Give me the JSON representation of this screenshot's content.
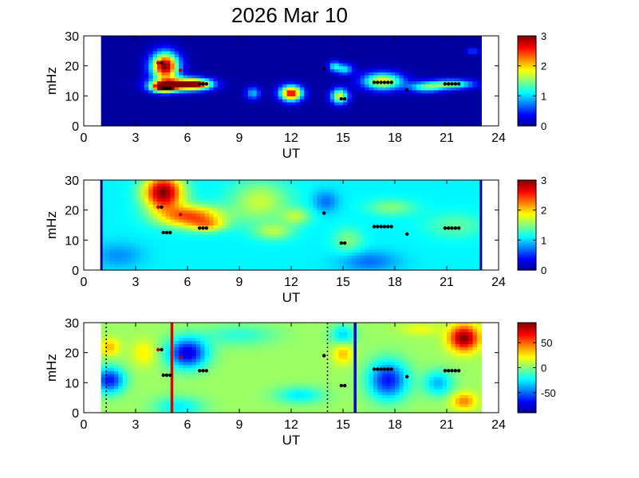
{
  "figure": {
    "title": "2026 Mar 10"
  },
  "colors": {
    "jet": [
      "#00008f",
      "#0000ff",
      "#0080ff",
      "#00ffff",
      "#80ff80",
      "#ffff00",
      "#ff8000",
      "#ff0000",
      "#800000"
    ],
    "marker": "#000000",
    "marker_red": "#c00000",
    "line_red": "#e00000",
    "line_blue": "#0000cc"
  },
  "chart_data": [
    {
      "type": "heatmap",
      "xlabel": "UT",
      "ylabel": "mHz",
      "xlim": [
        0,
        24
      ],
      "ylim": [
        0,
        30
      ],
      "xticks": [
        "0",
        "3",
        "6",
        "9",
        "12",
        "15",
        "18",
        "21",
        "24"
      ],
      "yticks": [
        "0",
        "10",
        "20",
        "30"
      ],
      "data_window": [
        1,
        23
      ],
      "colorbar": {
        "range": [
          0,
          3
        ],
        "ticks": [
          "0",
          "1",
          "2",
          "3"
        ]
      },
      "background": 0.05,
      "blobs": [
        {
          "x": 4.7,
          "y": 20,
          "sx": 0.55,
          "sy": 3.2,
          "v": 3.0
        },
        {
          "x": 5.6,
          "y": 14,
          "sx": 1.0,
          "sy": 1.5,
          "v": 2.4
        },
        {
          "x": 6.6,
          "y": 14,
          "sx": 0.6,
          "sy": 1.2,
          "v": 1.6
        },
        {
          "x": 4.6,
          "y": 13,
          "sx": 0.5,
          "sy": 1.2,
          "v": 2.6
        },
        {
          "x": 9.8,
          "y": 11,
          "sx": 0.3,
          "sy": 1.5,
          "v": 0.9
        },
        {
          "x": 12.0,
          "y": 11,
          "sx": 0.45,
          "sy": 1.8,
          "v": 2.7
        },
        {
          "x": 14.5,
          "y": 20,
          "sx": 0.25,
          "sy": 1.2,
          "v": 1.0
        },
        {
          "x": 15.1,
          "y": 19,
          "sx": 0.35,
          "sy": 1.3,
          "v": 1.0
        },
        {
          "x": 14.8,
          "y": 10,
          "sx": 0.35,
          "sy": 1.8,
          "v": 1.8
        },
        {
          "x": 17.3,
          "y": 15,
          "sx": 0.8,
          "sy": 2.0,
          "v": 1.9
        },
        {
          "x": 19.8,
          "y": 13,
          "sx": 0.7,
          "sy": 1.2,
          "v": 1.2
        },
        {
          "x": 21.3,
          "y": 14,
          "sx": 0.9,
          "sy": 1.1,
          "v": 1.4
        },
        {
          "x": 22.5,
          "y": 25,
          "sx": 0.25,
          "sy": 0.7,
          "v": 0.6
        }
      ],
      "lines": []
    },
    {
      "type": "heatmap",
      "xlabel": "UT",
      "ylabel": "mHz",
      "xlim": [
        0,
        24
      ],
      "ylim": [
        0,
        30
      ],
      "xticks": [
        "0",
        "3",
        "6",
        "9",
        "12",
        "15",
        "18",
        "21",
        "24"
      ],
      "yticks": [
        "0",
        "10",
        "20",
        "30"
      ],
      "data_window": [
        1,
        23
      ],
      "colorbar": {
        "range": [
          0,
          3
        ],
        "ticks": [
          "0",
          "1",
          "2",
          "3"
        ]
      },
      "background": 1.1,
      "blobs": [
        {
          "x": 4.6,
          "y": 26,
          "sx": 0.8,
          "sy": 4.0,
          "v": 1.9
        },
        {
          "x": 6.2,
          "y": 18,
          "sx": 1.3,
          "sy": 2.6,
          "v": 1.3
        },
        {
          "x": 7.2,
          "y": 15,
          "sx": 0.7,
          "sy": 1.5,
          "v": 0.6
        },
        {
          "x": 10.2,
          "y": 23,
          "sx": 1.2,
          "sy": 5.0,
          "v": 0.6
        },
        {
          "x": 11.0,
          "y": 13,
          "sx": 0.8,
          "sy": 2.0,
          "v": 0.5
        },
        {
          "x": 12.3,
          "y": 18,
          "sx": 0.6,
          "sy": 2.0,
          "v": 0.5
        },
        {
          "x": 14.0,
          "y": 23,
          "sx": 0.5,
          "sy": 2.5,
          "v": -0.4
        },
        {
          "x": 15.3,
          "y": 10,
          "sx": 0.6,
          "sy": 3.0,
          "v": 0.4
        },
        {
          "x": 16.5,
          "y": 3,
          "sx": 1.2,
          "sy": 2.5,
          "v": -0.4
        },
        {
          "x": 17.8,
          "y": 21,
          "sx": 1.0,
          "sy": 2.0,
          "v": 0.4
        },
        {
          "x": 21.5,
          "y": 15,
          "sx": 1.2,
          "sy": 3.0,
          "v": 0.3
        },
        {
          "x": 2.0,
          "y": 5,
          "sx": 1.0,
          "sy": 3.0,
          "v": -0.3
        }
      ],
      "lines": []
    },
    {
      "type": "heatmap",
      "xlabel": "UT",
      "ylabel": "mHz",
      "xlim": [
        0,
        24
      ],
      "ylim": [
        0,
        30
      ],
      "xticks": [
        "0",
        "3",
        "6",
        "9",
        "12",
        "15",
        "18",
        "21",
        "24"
      ],
      "yticks": [
        "0",
        "10",
        "20",
        "30"
      ],
      "data_window": [
        1,
        23
      ],
      "colorbar": {
        "range": [
          -90,
          90
        ],
        "ticks": [
          "50",
          "0",
          "-50"
        ],
        "tick_values": [
          50,
          0,
          -50
        ]
      },
      "background": 5,
      "blobs": [
        {
          "x": 1.5,
          "y": 11,
          "sx": 0.6,
          "sy": 3.0,
          "v": -70
        },
        {
          "x": 1.5,
          "y": 22,
          "sx": 0.4,
          "sy": 2.0,
          "v": 30
        },
        {
          "x": 3.5,
          "y": 20,
          "sx": 0.5,
          "sy": 3.0,
          "v": 20
        },
        {
          "x": 6.0,
          "y": 20,
          "sx": 0.8,
          "sy": 3.5,
          "v": -80
        },
        {
          "x": 5.5,
          "y": 2,
          "sx": 1.0,
          "sy": 2.5,
          "v": -30
        },
        {
          "x": 9.0,
          "y": 26,
          "sx": 1.5,
          "sy": 2.5,
          "v": -20
        },
        {
          "x": 12.5,
          "y": 6,
          "sx": 1.0,
          "sy": 2.0,
          "v": -30
        },
        {
          "x": 15.0,
          "y": 20,
          "sx": 0.4,
          "sy": 2.5,
          "v": 30
        },
        {
          "x": 15.0,
          "y": 26,
          "sx": 0.5,
          "sy": 2.5,
          "v": -35
        },
        {
          "x": 17.6,
          "y": 11,
          "sx": 0.8,
          "sy": 4.5,
          "v": -70
        },
        {
          "x": 20.5,
          "y": 10,
          "sx": 0.6,
          "sy": 3.0,
          "v": -40
        },
        {
          "x": 22.0,
          "y": 25,
          "sx": 0.6,
          "sy": 3.0,
          "v": 85
        },
        {
          "x": 22.0,
          "y": 4,
          "sx": 0.5,
          "sy": 2.0,
          "v": 40
        },
        {
          "x": 19.5,
          "y": 28,
          "sx": 0.8,
          "sy": 1.5,
          "v": 15
        }
      ],
      "lines": [
        {
          "x": 1.3,
          "color": "black",
          "style": "dotted"
        },
        {
          "x": 5.1,
          "color": "red",
          "style": "solid"
        },
        {
          "x": 14.1,
          "color": "black",
          "style": "dotted"
        },
        {
          "x": 15.7,
          "color": "blue",
          "style": "solid"
        }
      ]
    }
  ],
  "markers": {
    "black": [
      [
        4.5,
        21
      ],
      [
        4.6,
        12.5
      ],
      [
        4.8,
        12.5
      ],
      [
        5.0,
        12.5
      ],
      [
        6.7,
        14
      ],
      [
        6.9,
        14
      ],
      [
        7.1,
        14
      ],
      [
        13.9,
        19
      ],
      [
        14.9,
        9
      ],
      [
        15.1,
        9
      ],
      [
        16.8,
        14.5
      ],
      [
        17.0,
        14.5
      ],
      [
        17.2,
        14.5
      ],
      [
        17.4,
        14.5
      ],
      [
        17.6,
        14.5
      ],
      [
        17.8,
        14.5
      ],
      [
        18.7,
        12
      ],
      [
        20.9,
        14
      ],
      [
        21.1,
        14
      ],
      [
        21.3,
        14
      ],
      [
        21.5,
        14
      ],
      [
        21.7,
        14
      ]
    ],
    "red": [
      [
        4.3,
        21
      ],
      [
        5.6,
        18.5
      ]
    ]
  }
}
